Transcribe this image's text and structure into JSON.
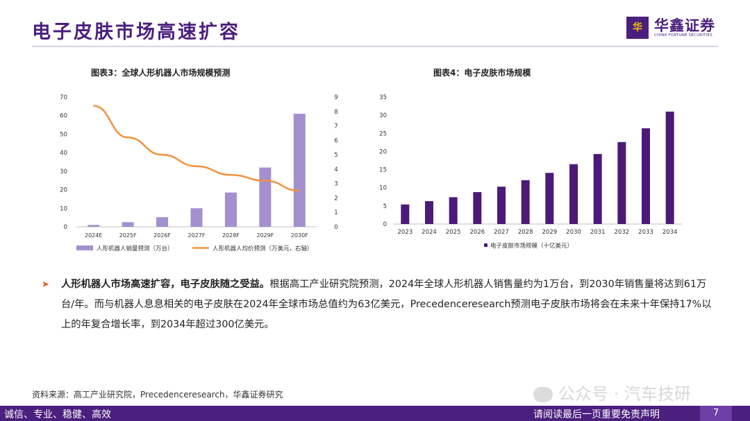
{
  "page": {
    "title": "电子皮肤市场高速扩容",
    "logo_glyph": "华",
    "brand_name": "华鑫证券",
    "brand_en": "CHINA FORTUNE SECURITIES",
    "source": "资料来源：高工产业研究院，Precedenceresearch，华鑫证券研究",
    "watermark": "公众号 · 汽车技研",
    "footer_left": "诚信、专业、稳健、高效",
    "footer_right": "请阅读最后一页重要免责声明",
    "page_number": "7",
    "bullet_bold": "人形机器人市场高速扩容，电子皮肤随之受益。",
    "bullet_text": "根据高工产业研究院预测，2024年全球人形机器人销售量约为1万台，到2030年销售量将达到61万台/年。而与机器人息息相关的电子皮肤在2024年全球市场总值约为63亿美元，Precedenceresearch预测电子皮肤市场将会在未来十年保持17%以上的年复合增长率，到2034年超过300亿美元。",
    "colors": {
      "brand": "#4b1f7d",
      "bar_light": "#a48fcf",
      "line_orange": "#f0923a",
      "bar_dark": "#4b1a78",
      "arrow": "#e05a1a"
    }
  },
  "chart_data": [
    {
      "type": "bar",
      "title": "图表3：全球人形机器人市场规模预测",
      "categories": [
        "2024E",
        "2025F",
        "2026F",
        "2027F",
        "2028F",
        "2029F",
        "2030F"
      ],
      "series": [
        {
          "name": "人形机器人销量预测（万台）",
          "type": "bar",
          "axis": "left",
          "values": [
            1,
            2.5,
            5.2,
            10,
            18.5,
            32,
            61
          ]
        },
        {
          "name": "人形机器人均价预测（万美元，右轴）",
          "type": "line",
          "axis": "right",
          "values": [
            8.4,
            6.2,
            5.0,
            4.2,
            3.6,
            3.2,
            2.5
          ]
        }
      ],
      "ylim": [
        0,
        70
      ],
      "yticks": [
        0,
        10,
        20,
        30,
        40,
        50,
        60,
        70
      ],
      "y2lim": [
        0,
        9
      ],
      "y2ticks": [
        0,
        1,
        2,
        3,
        4,
        5,
        6,
        7,
        8,
        9
      ],
      "legend": "bottom"
    },
    {
      "type": "bar",
      "title": "图表4：电子皮肤市场规模",
      "categories": [
        "2023",
        "2024",
        "2025",
        "2026",
        "2027",
        "2028",
        "2029",
        "2030",
        "2031",
        "2032",
        "2033",
        "2034"
      ],
      "series": [
        {
          "name": "电子皮肤市场规模（十亿美元）",
          "values": [
            5.4,
            6.3,
            7.4,
            8.8,
            10.3,
            12.1,
            14.1,
            16.5,
            19.3,
            22.6,
            26.4,
            31.0
          ]
        }
      ],
      "ylim": [
        0,
        35
      ],
      "yticks": [
        0,
        5,
        10,
        15,
        20,
        25,
        30,
        35
      ],
      "legend": "bottom"
    }
  ]
}
